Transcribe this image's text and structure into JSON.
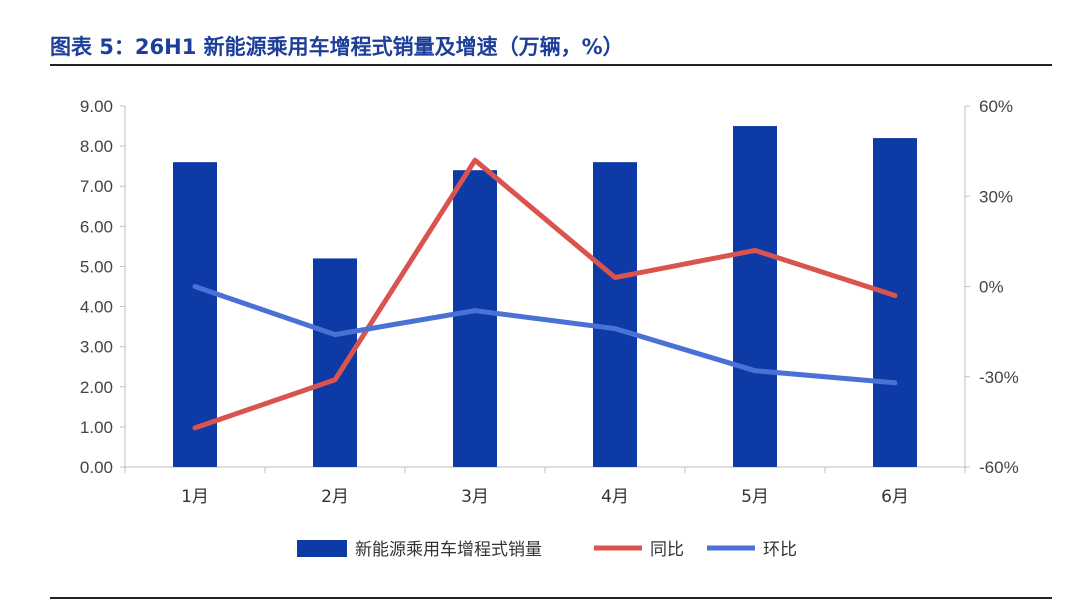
{
  "title": "图表 5：26H1 新能源乘用车增程式销量及增速（万辆，%）",
  "colors": {
    "bar": "#0e3aa5",
    "yoy": "#d9534f",
    "mom": "#4a72d6",
    "title": "#1d3f9a"
  },
  "chart_data": {
    "type": "bar",
    "categories": [
      "1月",
      "2月",
      "3月",
      "4月",
      "5月",
      "6月"
    ],
    "series": [
      {
        "name": "新能源乘用车增程式销量",
        "kind": "bar",
        "axis": "left",
        "values": [
          7.6,
          5.2,
          7.4,
          7.6,
          8.5,
          8.2
        ]
      },
      {
        "name": "同比",
        "kind": "line",
        "axis": "right",
        "values": [
          -47,
          -31,
          42,
          3,
          12,
          -3
        ]
      },
      {
        "name": "环比",
        "kind": "line",
        "axis": "right",
        "values": [
          0,
          -16,
          -8,
          -14,
          -28,
          -32
        ]
      }
    ],
    "ylim_left": [
      0,
      9
    ],
    "yticks_left": [
      "0.00",
      "1.00",
      "2.00",
      "3.00",
      "4.00",
      "5.00",
      "6.00",
      "7.00",
      "8.00",
      "9.00"
    ],
    "ylim_right": [
      -60,
      60
    ],
    "yticks_right": [
      "-60%",
      "-30%",
      "0%",
      "30%",
      "60%"
    ],
    "grid": false,
    "legend_position": "bottom"
  }
}
